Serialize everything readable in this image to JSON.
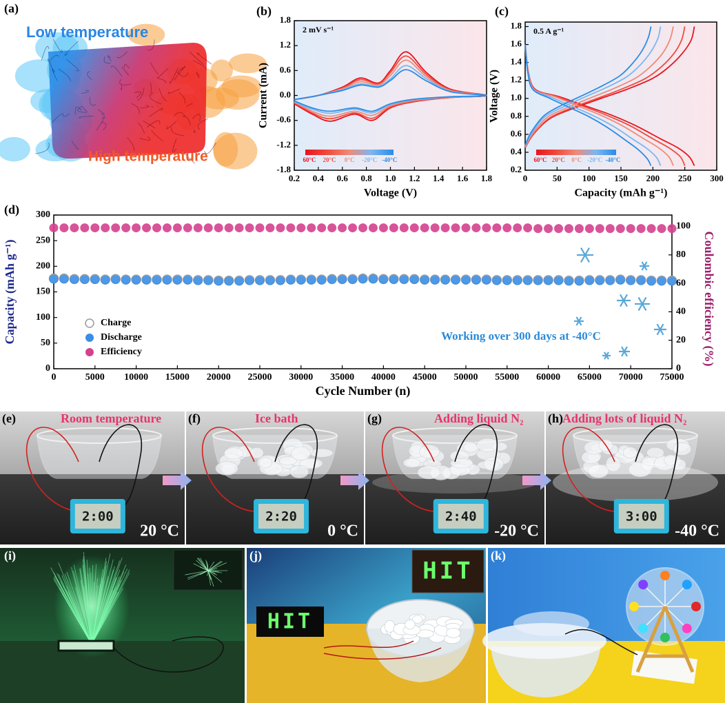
{
  "panel_a": {
    "label": "(a)",
    "low": "Low temperature",
    "high": "High temperature"
  },
  "chart_labels": [
    "(b)",
    "(c)",
    "(d)"
  ],
  "chart_data": [
    {
      "type": "line",
      "annotation": "2 mV s⁻¹",
      "xlabel": "Voltage (V)",
      "ylabel": "Current (mA)",
      "xlim": [
        0.2,
        1.8
      ],
      "ylim": [
        -1.8,
        1.8
      ],
      "xticks": [
        0.2,
        0.4,
        0.6,
        0.8,
        {
          "value": 1,
          "label": "1.0"
        },
        1.2,
        1.4,
        1.6,
        1.8
      ],
      "yticks": [
        -1.8,
        -1.2,
        -0.6,
        {
          "value": 0,
          "label": "0.0"
        },
        0.6,
        1.2,
        1.8
      ],
      "legend": "bottom-left",
      "x": [
        0.2,
        0.4,
        0.6,
        0.75,
        0.9,
        1.0,
        1.13,
        1.3,
        1.5,
        1.8,
        1.5,
        1.2,
        1.0,
        0.85,
        0.7,
        0.5,
        0.35,
        0.2
      ],
      "series": [
        {
          "name": "60°C",
          "color": "#e8141e",
          "values": [
            -0.1,
            0.0,
            0.2,
            0.42,
            0.3,
            0.6,
            1.05,
            0.55,
            0.15,
            0.0,
            -0.05,
            -0.15,
            -0.3,
            -0.6,
            -0.45,
            -0.62,
            -0.45,
            -0.2
          ]
        },
        {
          "name": "20°C",
          "color": "#f04a3c",
          "values": [
            -0.1,
            0.0,
            0.18,
            0.38,
            0.28,
            0.55,
            0.95,
            0.5,
            0.13,
            0.0,
            -0.05,
            -0.14,
            -0.28,
            -0.55,
            -0.42,
            -0.56,
            -0.42,
            -0.18
          ]
        },
        {
          "name": "0°C",
          "color": "#f08a78",
          "values": [
            -0.1,
            0.0,
            0.16,
            0.33,
            0.25,
            0.48,
            0.85,
            0.45,
            0.12,
            0.0,
            -0.04,
            -0.12,
            -0.25,
            -0.48,
            -0.38,
            -0.5,
            -0.38,
            -0.16
          ]
        },
        {
          "name": "-20°C",
          "color": "#7cb6f0",
          "values": [
            -0.1,
            0.0,
            0.14,
            0.28,
            0.22,
            0.4,
            0.72,
            0.4,
            0.1,
            0.0,
            -0.04,
            -0.1,
            -0.22,
            -0.42,
            -0.33,
            -0.43,
            -0.33,
            -0.15
          ]
        },
        {
          "name": "-40°C",
          "color": "#2a8ce6",
          "values": [
            -0.1,
            0.0,
            0.12,
            0.25,
            0.2,
            0.36,
            0.62,
            0.35,
            0.09,
            0.0,
            -0.03,
            -0.09,
            -0.2,
            -0.38,
            -0.3,
            -0.38,
            -0.3,
            -0.13
          ]
        }
      ]
    },
    {
      "type": "line",
      "annotation": "0.5 A g⁻¹",
      "xlabel": "Capacity (mAh g⁻¹)",
      "ylabel": "Voltage (V)",
      "xlim": [
        0,
        300
      ],
      "ylim": [
        0.2,
        1.85
      ],
      "xticks": [
        0,
        50,
        100,
        150,
        200,
        250,
        300
      ],
      "yticks": [
        0.2,
        0.4,
        0.6,
        0.8,
        {
          "value": 1,
          "label": "1.0"
        },
        1.2,
        1.4,
        1.6,
        1.8
      ],
      "legend": "bottom-left",
      "series": [
        {
          "name": "60°C",
          "color": "#e8141e",
          "x": [
            0,
            13,
            40,
            80,
            119,
            159,
            199,
            225,
            246,
            260,
            265,
            null,
            0,
            5,
            16,
            53,
            93,
            133,
            172,
            212,
            239,
            257,
            265
          ],
          "values": [
            0.45,
            0.6,
            0.78,
            0.9,
            1.0,
            1.1,
            1.22,
            1.35,
            1.5,
            1.65,
            1.8,
            null,
            1.6,
            1.3,
            1.1,
            1.02,
            0.92,
            0.82,
            0.7,
            0.55,
            0.45,
            0.35,
            0.25
          ]
        },
        {
          "name": "20°C",
          "color": "#f04a3c",
          "x": [
            0,
            13,
            38,
            75,
            113,
            150,
            188,
            213,
            233,
            245,
            250,
            null,
            0,
            5,
            15,
            50,
            88,
            125,
            163,
            200,
            225,
            243,
            250
          ],
          "values": [
            0.45,
            0.6,
            0.78,
            0.9,
            1.0,
            1.1,
            1.22,
            1.35,
            1.5,
            1.65,
            1.8,
            null,
            1.6,
            1.3,
            1.1,
            1.02,
            0.92,
            0.82,
            0.7,
            0.55,
            0.45,
            0.35,
            0.25
          ]
        },
        {
          "name": "0°C",
          "color": "#f08a78",
          "x": [
            0,
            12,
            35,
            70,
            104,
            139,
            174,
            197,
            216,
            227,
            232,
            null,
            0,
            5,
            14,
            46,
            81,
            116,
            151,
            186,
            209,
            225,
            232
          ],
          "values": [
            0.46,
            0.61,
            0.79,
            0.91,
            1.01,
            1.11,
            1.23,
            1.36,
            1.51,
            1.66,
            1.8,
            null,
            1.6,
            1.3,
            1.1,
            1.02,
            0.92,
            0.82,
            0.7,
            0.55,
            0.45,
            0.35,
            0.25
          ]
        },
        {
          "name": "-20°C",
          "color": "#7cb6f0",
          "x": [
            0,
            11,
            32,
            64,
            95,
            127,
            159,
            180,
            197,
            208,
            212,
            null,
            0,
            4,
            13,
            42,
            74,
            106,
            138,
            170,
            191,
            206,
            212
          ],
          "values": [
            0.47,
            0.62,
            0.8,
            0.92,
            1.02,
            1.12,
            1.24,
            1.37,
            1.52,
            1.67,
            1.8,
            null,
            1.6,
            1.3,
            1.1,
            1.01,
            0.91,
            0.81,
            0.69,
            0.54,
            0.44,
            0.34,
            0.25
          ]
        },
        {
          "name": "-40°C",
          "color": "#2a8ce6",
          "x": [
            0,
            10,
            30,
            59,
            89,
            118,
            148,
            167,
            183,
            193,
            197,
            null,
            0,
            4,
            12,
            39,
            69,
            99,
            128,
            158,
            177,
            191,
            197
          ],
          "values": [
            0.48,
            0.63,
            0.81,
            0.93,
            1.03,
            1.13,
            1.25,
            1.38,
            1.53,
            1.68,
            1.8,
            null,
            1.6,
            1.3,
            1.1,
            1.0,
            0.9,
            0.8,
            0.68,
            0.53,
            0.43,
            0.33,
            0.25
          ]
        }
      ]
    },
    {
      "type": "scatter",
      "annotation": "Working over 300 days at -40°C",
      "xlabel": "Cycle Number (n)",
      "ylabel": "Capacity (mAh g⁻¹)",
      "y2label": "Coulombic efficiency (%)",
      "xlim": [
        0,
        75000
      ],
      "ylim": [
        0,
        300
      ],
      "y2lim": [
        0,
        108
      ],
      "xticks": [
        0,
        5000,
        10000,
        15000,
        20000,
        25000,
        30000,
        35000,
        40000,
        45000,
        50000,
        55000,
        60000,
        65000,
        70000,
        75000
      ],
      "yticks": [
        0,
        50,
        100,
        150,
        200,
        250,
        300
      ],
      "y2ticks": [
        0,
        20,
        40,
        60,
        80,
        100
      ],
      "legend": "bottom-left",
      "x": [
        0,
        1250,
        2500,
        3750,
        5000,
        6250,
        7500,
        8750,
        10000,
        11250,
        12500,
        13750,
        15000,
        16250,
        17500,
        18750,
        20000,
        21250,
        22500,
        23750,
        25000,
        26250,
        27500,
        28750,
        30000,
        31250,
        32500,
        33750,
        35000,
        36250,
        37500,
        38750,
        40000,
        41250,
        42500,
        43750,
        45000,
        46250,
        47500,
        48750,
        50000,
        51250,
        52500,
        53750,
        55000,
        56250,
        57500,
        58750,
        60000,
        61250,
        62500,
        63750,
        65000,
        66250,
        67500,
        68750,
        70000,
        71250,
        72500,
        73750,
        75000
      ],
      "series": [
        {
          "name": "Charge",
          "color": "#9a9a9a",
          "hollow": true,
          "values": [
            176,
            176,
            175,
            175,
            175,
            174,
            175,
            174,
            174,
            174,
            174,
            174,
            174,
            174,
            173,
            173,
            172,
            172,
            172,
            173,
            173,
            173,
            173,
            174,
            174,
            174,
            174,
            175,
            175,
            175,
            176,
            176,
            175,
            175,
            175,
            175,
            174,
            174,
            174,
            174,
            174,
            174,
            174,
            173,
            173,
            173,
            173,
            173,
            173,
            173,
            172,
            172,
            173,
            173,
            173,
            174,
            173,
            173,
            172,
            172,
            172
          ]
        },
        {
          "name": "Discharge",
          "color": "#3a8ee6",
          "values": [
            175,
            175,
            174,
            174,
            174,
            173,
            174,
            173,
            173,
            173,
            173,
            173,
            173,
            173,
            172,
            172,
            171,
            171,
            171,
            172,
            172,
            172,
            172,
            173,
            173,
            173,
            173,
            174,
            174,
            174,
            175,
            175,
            174,
            174,
            174,
            174,
            173,
            173,
            173,
            173,
            173,
            173,
            173,
            172,
            172,
            172,
            172,
            172,
            172,
            172,
            171,
            171,
            172,
            172,
            172,
            173,
            172,
            172,
            171,
            171,
            171
          ]
        },
        {
          "name": "Efficiency",
          "color": "#d4418e",
          "axis": "y2",
          "values": [
            99,
            99,
            99,
            99,
            99,
            99,
            99,
            99,
            99,
            99,
            99,
            99,
            99,
            99,
            99,
            99,
            99,
            99,
            99,
            99,
            99,
            99,
            99,
            99,
            99,
            99,
            99,
            99,
            99,
            99,
            99,
            99,
            99,
            99,
            99,
            99,
            99,
            99,
            99,
            99,
            99,
            99,
            99,
            99,
            99,
            99,
            99,
            98.5,
            98.5,
            98.5,
            98.5,
            98.5,
            98.5,
            98.5,
            98.5,
            98.5,
            98.5,
            98.5,
            98.5,
            98.5,
            98.5
          ]
        }
      ]
    }
  ],
  "photos": [
    {
      "label": "(e)",
      "caption": "Room temperature",
      "clock": "2:00",
      "temperature": "20 °C"
    },
    {
      "label": "(f)",
      "caption": "Ice bath",
      "clock": "2:20",
      "temperature": "0 °C"
    },
    {
      "label": "(g)",
      "caption": "Adding liquid N₂",
      "clock": "2:40",
      "temperature": "-20 °C"
    },
    {
      "label": "(h)",
      "caption": "Adding lots of liquid N₂",
      "clock": "3:00",
      "temperature": "-40 °C"
    }
  ],
  "demos": [
    {
      "label": "(i)"
    },
    {
      "label": "(j)",
      "signs": [
        "HIT",
        "HIT"
      ]
    },
    {
      "label": "(k)"
    }
  ]
}
